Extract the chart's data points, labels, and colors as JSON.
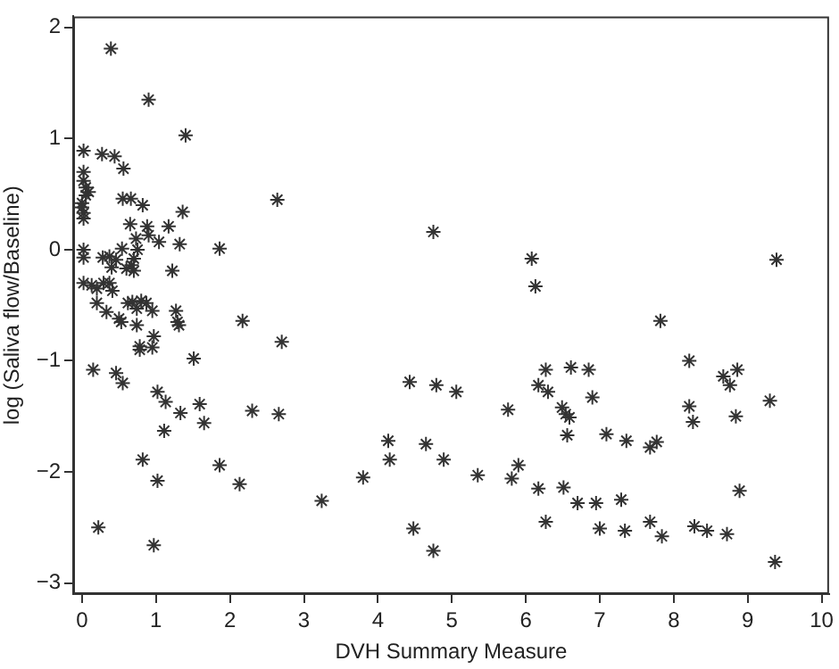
{
  "chart_data": {
    "type": "scatter",
    "xlabel": "DVH Summary Measure",
    "ylabel": "log (Saliva flow/Baseline)",
    "xlim": [
      -0.12,
      10.1
    ],
    "ylim": [
      -3.1,
      2.1
    ],
    "xticks": [
      0,
      1,
      2,
      3,
      4,
      5,
      6,
      7,
      8,
      9,
      10
    ],
    "yticks": [
      -3,
      -2,
      -1,
      0,
      1,
      2
    ],
    "grid": false,
    "legend": false,
    "marker": "cross",
    "series": [
      {
        "color": "#333333",
        "x": [
          0.39,
          0.9,
          1.4,
          0.02,
          0.27,
          0.44,
          0.56,
          0.02,
          0.02,
          0.05,
          0.09,
          0.05,
          0.55,
          0.66,
          0.82,
          0.0,
          0.02,
          0.02,
          0.0,
          1.36,
          0.65,
          0.88,
          1.17,
          0.9,
          0.73,
          1.04,
          1.32,
          1.86,
          0.02,
          0.02,
          0.54,
          0.75,
          0.28,
          0.37,
          0.46,
          0.7,
          0.67,
          0.4,
          0.6,
          0.7,
          1.22,
          0.02,
          0.13,
          0.29,
          0.37,
          0.2,
          0.41,
          0.2,
          0.33,
          0.62,
          0.68,
          0.8,
          0.87,
          0.74,
          0.5,
          0.53,
          0.95,
          1.27,
          1.29,
          1.31,
          0.74,
          2.17,
          0.97,
          0.78,
          0.78,
          0.95,
          2.7,
          1.51,
          0.15,
          0.46,
          0.55,
          1.02,
          1.13,
          1.59,
          1.33,
          1.65,
          2.3,
          2.66,
          1.11,
          0.82,
          1.86,
          1.02,
          2.13,
          0.22,
          0.97,
          2.64,
          4.75,
          6.08,
          6.13,
          4.43,
          4.79,
          5.06,
          5.76,
          6.27,
          6.17,
          6.3,
          4.14,
          4.16,
          4.65,
          4.89,
          5.9,
          5.81,
          5.35,
          3.8,
          3.24,
          6.17,
          6.27,
          4.48,
          4.75,
          9.39,
          7.82,
          6.61,
          6.85,
          8.21,
          8.67,
          8.86,
          8.76,
          6.9,
          6.49,
          6.54,
          6.59,
          6.56,
          7.09,
          7.36,
          7.68,
          7.77,
          8.21,
          8.26,
          8.84,
          9.3,
          6.51,
          6.7,
          6.95,
          7.29,
          8.89,
          7.0,
          7.34,
          7.68,
          7.84,
          8.28,
          8.45,
          8.72,
          9.37
        ],
        "values": [
          1.81,
          1.35,
          1.03,
          0.89,
          0.86,
          0.84,
          0.73,
          0.7,
          0.62,
          0.56,
          0.52,
          0.49,
          0.46,
          0.46,
          0.4,
          0.42,
          0.33,
          0.28,
          0.38,
          0.34,
          0.23,
          0.21,
          0.21,
          0.13,
          0.1,
          0.07,
          0.05,
          0.01,
          0.0,
          -0.07,
          0.01,
          0.0,
          -0.07,
          -0.06,
          -0.09,
          -0.08,
          -0.14,
          -0.16,
          -0.17,
          -0.19,
          -0.19,
          -0.3,
          -0.32,
          -0.3,
          -0.3,
          -0.35,
          -0.37,
          -0.48,
          -0.56,
          -0.48,
          -0.47,
          -0.46,
          -0.48,
          -0.53,
          -0.62,
          -0.65,
          -0.55,
          -0.55,
          -0.65,
          -0.68,
          -0.68,
          -0.64,
          -0.78,
          -0.87,
          -0.9,
          -0.88,
          -0.83,
          -0.98,
          -1.08,
          -1.11,
          -1.2,
          -1.28,
          -1.37,
          -1.39,
          -1.47,
          -1.56,
          -1.45,
          -1.48,
          -1.63,
          -1.89,
          -1.94,
          -2.08,
          -2.11,
          -2.5,
          -2.66,
          0.45,
          0.16,
          -0.08,
          -0.33,
          -1.19,
          -1.22,
          -1.28,
          -1.44,
          -1.08,
          -1.22,
          -1.28,
          -1.72,
          -1.89,
          -1.75,
          -1.89,
          -1.94,
          -2.06,
          -2.03,
          -2.05,
          -2.26,
          -2.15,
          -2.45,
          -2.51,
          -2.71,
          -0.09,
          -0.64,
          -1.06,
          -1.08,
          -1.0,
          -1.14,
          -1.08,
          -1.22,
          -1.33,
          -1.42,
          -1.48,
          -1.51,
          -1.67,
          -1.66,
          -1.72,
          -1.78,
          -1.73,
          -1.41,
          -1.55,
          -1.5,
          -1.36,
          -2.14,
          -2.28,
          -2.28,
          -2.25,
          -2.17,
          -2.51,
          -2.53,
          -2.45,
          -2.58,
          -2.49,
          -2.53,
          -2.56,
          -2.81
        ]
      }
    ]
  }
}
